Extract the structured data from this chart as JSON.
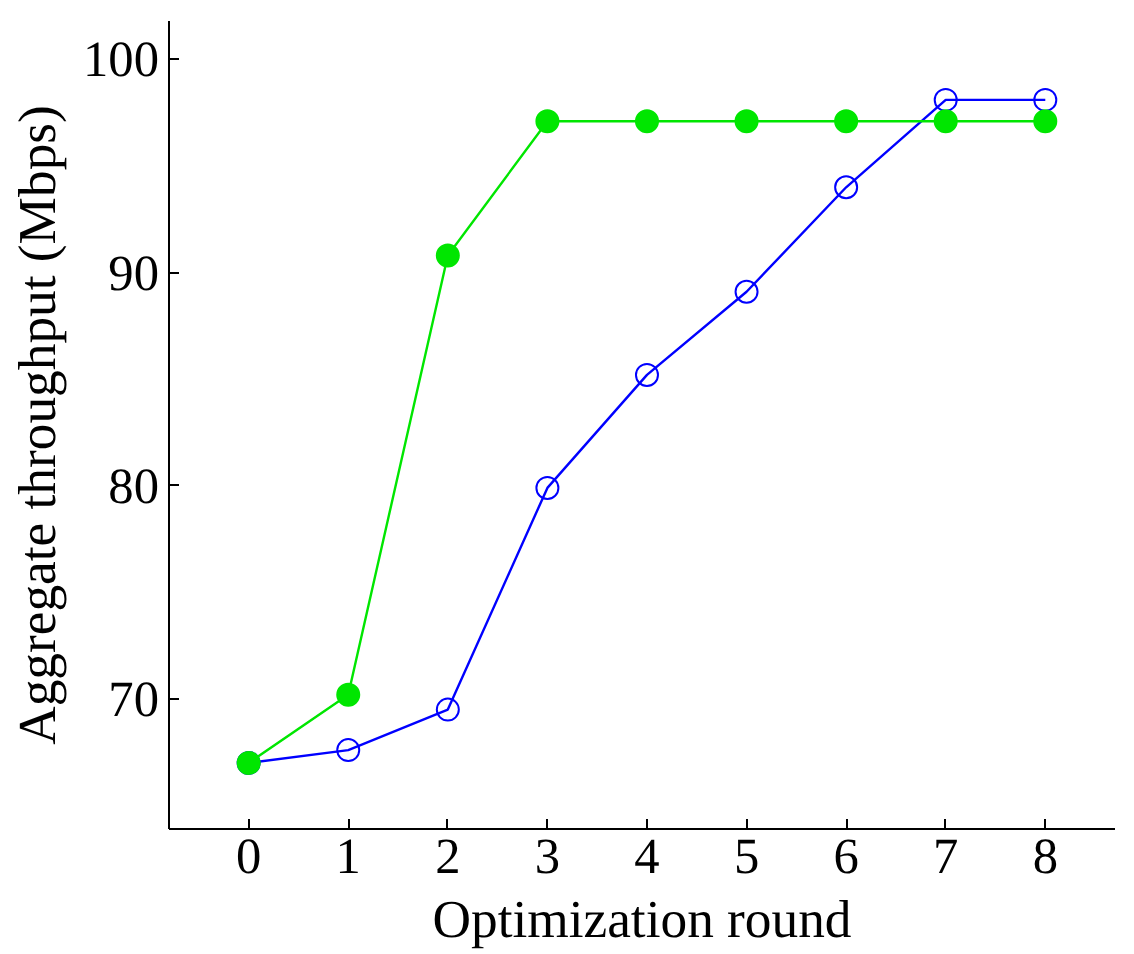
{
  "chart_data": {
    "type": "line",
    "xlabel": "Optimization round",
    "ylabel": "Aggregate throughput (Mbps)",
    "x": [
      0,
      1,
      2,
      3,
      4,
      5,
      6,
      7,
      8
    ],
    "xlim": [
      -0.8,
      8.7
    ],
    "xticks": [
      0,
      1,
      2,
      3,
      4,
      5,
      6,
      7,
      8
    ],
    "ylim": [
      63.9,
      101.8
    ],
    "yticks": [
      70,
      80,
      90,
      100
    ],
    "marker": "circle",
    "line_style": "solid",
    "grid": false,
    "series": [
      {
        "color": "#0000ff",
        "values": [
          67.0,
          67.6,
          69.5,
          79.9,
          85.2,
          89.1,
          94.0,
          98.1,
          98.1
        ]
      },
      {
        "color": "#00e600",
        "values": [
          67.0,
          70.2,
          90.8,
          97.1,
          97.1,
          97.1,
          97.1,
          97.1,
          97.1
        ]
      }
    ]
  }
}
